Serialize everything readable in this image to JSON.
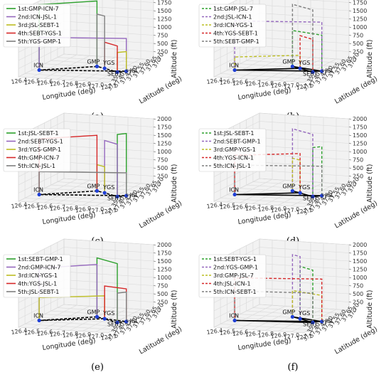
{
  "chart_data": [
    {
      "type": "line",
      "caption": "(a)",
      "legend": [
        "1st:GMP-ICN-7",
        "2nd:ICN-JSL-1",
        "3rd:JSL-SEBT-1",
        "4th:SEBT-YGS-1",
        "5th:YGS-GMP-1"
      ],
      "series": [
        {
          "name": "1st:GMP-ICN-7",
          "color": "#2ca02c",
          "dashed": false,
          "from": "GMP",
          "to": "ICN",
          "alt": 2000
        },
        {
          "name": "2nd:ICN-JSL-1",
          "color": "#9467bd",
          "dashed": false,
          "from": "ICN",
          "to": "JSL",
          "alt": 1000
        },
        {
          "name": "3rd:JSL-SEBT-1",
          "color": "#bcbd22",
          "dashed": false,
          "from": "JSL",
          "to": "SEBT",
          "alt": 600
        },
        {
          "name": "4th:SEBT-YGS-1",
          "color": "#d62728",
          "dashed": false,
          "from": "SEBT",
          "to": "YGS",
          "alt": 800
        },
        {
          "name": "5th:YGS-GMP-1",
          "color": "#7f7f7f",
          "dashed": false,
          "from": "YGS",
          "to": "GMP",
          "alt": 1600
        }
      ]
    },
    {
      "type": "line",
      "caption": "(b)",
      "legend": [
        "1st:GMP-JSL-7",
        "2nd:JSL-ICN-1",
        "3rd:ICN-YGS-1",
        "4th:YGS-SEBT-1",
        "5th:SEBT-GMP-1"
      ],
      "series": [
        {
          "name": "1st:GMP-JSL-7",
          "color": "#2ca02c",
          "dashed": true,
          "from": "GMP",
          "to": "JSL",
          "alt": 1100
        },
        {
          "name": "2nd:JSL-ICN-1",
          "color": "#9467bd",
          "dashed": true,
          "from": "JSL",
          "to": "ICN",
          "alt": 1500
        },
        {
          "name": "3rd:ICN-YGS-1",
          "color": "#bcbd22",
          "dashed": true,
          "from": "ICN",
          "to": "YGS",
          "alt": 400
        },
        {
          "name": "4th:YGS-SEBT-1",
          "color": "#d62728",
          "dashed": true,
          "from": "YGS",
          "to": "SEBT",
          "alt": 1000
        },
        {
          "name": "5th:SEBT-GMP-1",
          "color": "#7f7f7f",
          "dashed": true,
          "from": "SEBT",
          "to": "GMP",
          "alt": 1900
        }
      ]
    },
    {
      "type": "line",
      "caption": "(c)",
      "legend": [
        "1st:JSL-SEBT-1",
        "2nd:SEBT-YGS-1",
        "3rd:YGS-GMP-1",
        "4th:GMP-ICN-7",
        "5th:ICN-JSL-1"
      ],
      "series": [
        {
          "name": "1st:JSL-SEBT-1",
          "color": "#2ca02c",
          "dashed": false,
          "from": "JSL",
          "to": "SEBT",
          "alt": 1900
        },
        {
          "name": "2nd:SEBT-YGS-1",
          "color": "#9467bd",
          "dashed": false,
          "from": "SEBT",
          "to": "YGS",
          "alt": 1600
        },
        {
          "name": "3rd:YGS-GMP-1",
          "color": "#bcbd22",
          "dashed": false,
          "from": "YGS",
          "to": "GMP",
          "alt": 800
        },
        {
          "name": "4th:GMP-ICN-7",
          "color": "#d62728",
          "dashed": false,
          "from": "GMP",
          "to": "ICN",
          "alt": 1700
        },
        {
          "name": "5th:ICN-JSL-1",
          "color": "#7f7f7f",
          "dashed": false,
          "from": "ICN",
          "to": "JSL",
          "alt": 700
        }
      ]
    },
    {
      "type": "line",
      "caption": "(d)",
      "legend": [
        "1st:JSL-SEBT-1",
        "2nd:SEBT-GMP-1",
        "3rd:GMP-YGS-1",
        "4th:YGS-ICN-1",
        "5th:ICN-JSL-1"
      ],
      "series": [
        {
          "name": "1st:JSL-SEBT-1",
          "color": "#2ca02c",
          "dashed": true,
          "from": "JSL",
          "to": "SEBT",
          "alt": 1500
        },
        {
          "name": "2nd:SEBT-GMP-1",
          "color": "#9467bd",
          "dashed": true,
          "from": "SEBT",
          "to": "GMP",
          "alt": 1900
        },
        {
          "name": "3rd:GMP-YGS-1",
          "color": "#bcbd22",
          "dashed": true,
          "from": "GMP",
          "to": "YGS",
          "alt": 1000
        },
        {
          "name": "4th:YGS-ICN-1",
          "color": "#d62728",
          "dashed": true,
          "from": "YGS",
          "to": "ICN",
          "alt": 1200
        },
        {
          "name": "5th:ICN-JSL-1",
          "color": "#7f7f7f",
          "dashed": true,
          "from": "ICN",
          "to": "JSL",
          "alt": 900
        }
      ]
    },
    {
      "type": "line",
      "caption": "(e)",
      "legend": [
        "1st:SEBT-GMP-1",
        "2nd:GMP-ICN-7",
        "3rd:ICN-YGS-1",
        "4th:YGS-JSL-1",
        "5th:JSL-SEBT-1"
      ],
      "series": [
        {
          "name": "1st:SEBT-GMP-1",
          "color": "#2ca02c",
          "dashed": false,
          "from": "SEBT",
          "to": "GMP",
          "alt": 1800
        },
        {
          "name": "2nd:GMP-ICN-7",
          "color": "#9467bd",
          "dashed": false,
          "from": "GMP",
          "to": "ICN",
          "alt": 1600
        },
        {
          "name": "3rd:ICN-YGS-1",
          "color": "#bcbd22",
          "dashed": false,
          "from": "ICN",
          "to": "YGS",
          "alt": 700
        },
        {
          "name": "4th:YGS-JSL-1",
          "color": "#d62728",
          "dashed": false,
          "from": "YGS",
          "to": "JSL",
          "alt": 1000
        },
        {
          "name": "5th:JSL-SEBT-1",
          "color": "#7f7f7f",
          "dashed": false,
          "from": "JSL",
          "to": "SEBT",
          "alt": 900
        }
      ]
    },
    {
      "type": "line",
      "caption": "(f)",
      "legend": [
        "1st:SEBT-YGS-1",
        "2nd:YGS-GMP-1",
        "3rd:GMP-JSL-7",
        "4th:JSL-ICN-1",
        "5th:ICN-SEBT-1"
      ],
      "series": [
        {
          "name": "1st:SEBT-YGS-1",
          "color": "#2ca02c",
          "dashed": true,
          "from": "SEBT",
          "to": "YGS",
          "alt": 1600
        },
        {
          "name": "2nd:YGS-GMP-1",
          "color": "#9467bd",
          "dashed": true,
          "from": "YGS",
          "to": "GMP",
          "alt": 1900
        },
        {
          "name": "3rd:GMP-JSL-7",
          "color": "#bcbd22",
          "dashed": true,
          "from": "GMP",
          "to": "JSL",
          "alt": 800
        },
        {
          "name": "4th:JSL-ICN-1",
          "color": "#d62728",
          "dashed": true,
          "from": "JSL",
          "to": "ICN",
          "alt": 1300
        },
        {
          "name": "5th:ICN-SEBT-1",
          "color": "#7f7f7f",
          "dashed": true,
          "from": "ICN",
          "to": "SEBT",
          "alt": 900
        }
      ]
    }
  ],
  "axes": {
    "xlabel": "Longitude (deg)",
    "ylabel": "Latitude (deg)",
    "zlabel": "Altitude (ft)",
    "xlim": [
      126.4,
      127.1
    ],
    "ylim": [
      37.35,
      37.7
    ],
    "zlim": [
      0,
      2000
    ],
    "xticks": [
      "126.4",
      "126.5",
      "126.6",
      "126.7",
      "126.8",
      "126.9",
      "127.0",
      "127.1"
    ],
    "yticks": [
      "37.35",
      "37.40",
      "37.45",
      "37.50",
      "37.55",
      "37.60",
      "37.65",
      "37.70"
    ],
    "zticks": [
      "0",
      "250",
      "500",
      "750",
      "1000",
      "1250",
      "1500",
      "1750",
      "2000"
    ]
  },
  "nodes": [
    {
      "name": "ICN",
      "lon": 126.45,
      "lat": 37.46
    },
    {
      "name": "GMP",
      "lon": 126.8,
      "lat": 37.56
    },
    {
      "name": "YGS",
      "lon": 126.88,
      "lat": 37.54
    },
    {
      "name": "SEBT",
      "lon": 127.02,
      "lat": 37.5
    },
    {
      "name": "JSL",
      "lon": 127.07,
      "lat": 37.52
    }
  ],
  "colors": {
    "ground_path": "#000000",
    "grid": "#d9d9d9",
    "pane": "#f2f2f2",
    "node_marker": "#1f3fd6"
  }
}
